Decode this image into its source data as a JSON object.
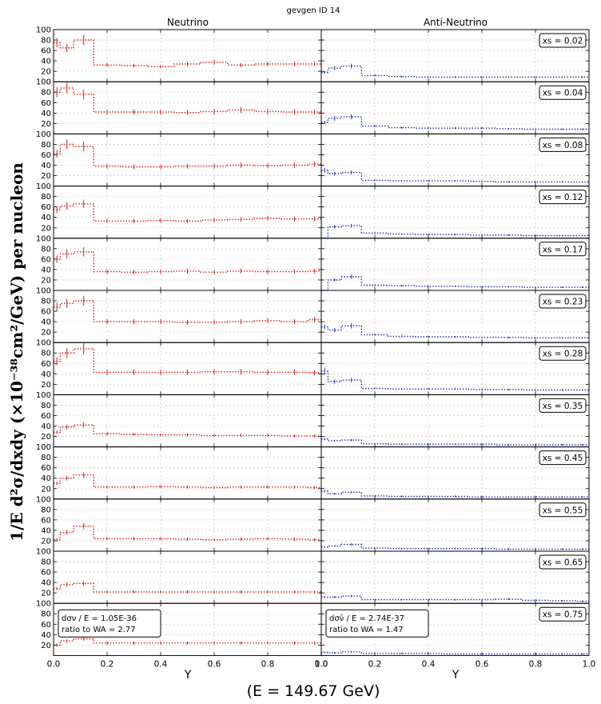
{
  "figure": {
    "title": "gevgen ID 14",
    "col_titles": [
      "Neutrino",
      "Anti-Neutrino"
    ],
    "ylabel_main": "1/E  d²σ/dxdy  (×10⁻³⁸cm²/GeV) per nucleon",
    "xlabel": "Y",
    "energy_label": "(E = 149.67 GeV)",
    "xticks": [
      "0.0",
      "0.2",
      "0.4",
      "0.6",
      "0.8",
      "1.0"
    ],
    "yticks": [
      "20",
      "40",
      "60",
      "80",
      "100"
    ],
    "info": [
      {
        "line1": "dσν / E = 1.05E-36",
        "line2": "ratio to WA = 2.77"
      },
      {
        "line1": "dσν̄ / E = 2.74E-37",
        "line2": "ratio to WA = 1.47"
      }
    ],
    "colors": {
      "neutrino": "#e41a1c",
      "antineutrino": "#1f2fb0",
      "grid": "#c8c8c8"
    }
  },
  "chart_data": {
    "type": "step",
    "title": "gevgen ID 14",
    "xlabel": "Y",
    "xlim": [
      0,
      1
    ],
    "ylim": [
      0,
      100
    ],
    "y_bins_edges": [
      0.0,
      0.025,
      0.075,
      0.15,
      0.25,
      0.35,
      0.45,
      0.55,
      0.65,
      0.75,
      0.85,
      0.95,
      1.0
    ],
    "panels": [
      {
        "xs": "xs = 0.02",
        "neutrino": [
          75,
          65,
          80,
          32,
          31,
          29,
          34,
          37,
          32,
          34,
          34,
          34
        ],
        "antineutrino": [
          18,
          26,
          30,
          12,
          10,
          9,
          9,
          9,
          9,
          9,
          9,
          9
        ]
      },
      {
        "xs": "xs = 0.04",
        "neutrino": [
          80,
          88,
          76,
          42,
          42,
          42,
          41,
          43,
          46,
          43,
          42,
          42
        ],
        "antineutrino": [
          22,
          30,
          33,
          15,
          12,
          11,
          11,
          11,
          10,
          9,
          9,
          9
        ]
      },
      {
        "xs": "xs = 0.08",
        "neutrino": [
          62,
          80,
          76,
          38,
          37,
          37,
          38,
          38,
          40,
          39,
          40,
          42
        ],
        "antineutrino": [
          30,
          24,
          26,
          11,
          10,
          10,
          10,
          9,
          8,
          8,
          8,
          8
        ]
      },
      {
        "xs": "xs = 0.12",
        "neutrino": [
          55,
          62,
          66,
          33,
          33,
          34,
          33,
          35,
          36,
          38,
          37,
          37
        ],
        "antineutrino": [
          0,
          22,
          24,
          10,
          8,
          7,
          7,
          6,
          6,
          5,
          5,
          5
        ]
      },
      {
        "xs": "xs = 0.17",
        "neutrino": [
          60,
          70,
          74,
          36,
          35,
          36,
          37,
          35,
          37,
          36,
          36,
          37
        ],
        "antineutrino": [
          0,
          20,
          26,
          10,
          9,
          8,
          8,
          7,
          7,
          6,
          6,
          6
        ]
      },
      {
        "xs": "xs = 0.23",
        "neutrino": [
          68,
          75,
          80,
          40,
          40,
          40,
          39,
          39,
          40,
          42,
          40,
          44
        ],
        "antineutrino": [
          30,
          24,
          32,
          15,
          12,
          11,
          11,
          10,
          10,
          9,
          9,
          9
        ]
      },
      {
        "xs": "xs = 0.28",
        "neutrino": [
          64,
          80,
          88,
          43,
          43,
          43,
          43,
          44,
          44,
          43,
          43,
          42
        ],
        "antineutrino": [
          45,
          25,
          28,
          12,
          11,
          11,
          11,
          10,
          10,
          9,
          9,
          9
        ]
      },
      {
        "xs": "xs = 0.35",
        "neutrino": [
          28,
          38,
          42,
          25,
          24,
          23,
          23,
          22,
          22,
          22,
          21,
          21
        ],
        "antineutrino": [
          15,
          12,
          13,
          6,
          5,
          5,
          5,
          5,
          4,
          4,
          4,
          4
        ]
      },
      {
        "xs": "xs = 0.45",
        "neutrino": [
          30,
          40,
          46,
          23,
          23,
          24,
          23,
          22,
          23,
          23,
          23,
          22
        ],
        "antineutrino": [
          15,
          10,
          13,
          6,
          5,
          5,
          5,
          4,
          4,
          4,
          4,
          4
        ]
      },
      {
        "xs": "xs = 0.55",
        "neutrino": [
          22,
          36,
          48,
          24,
          24,
          24,
          23,
          22,
          23,
          24,
          23,
          22
        ],
        "antineutrino": [
          8,
          10,
          13,
          6,
          5,
          5,
          5,
          5,
          4,
          4,
          4,
          4
        ]
      },
      {
        "xs": "xs = 0.65",
        "neutrino": [
          28,
          36,
          38,
          22,
          22,
          22,
          22,
          22,
          22,
          22,
          22,
          22
        ],
        "antineutrino": [
          12,
          12,
          14,
          7,
          7,
          7,
          7,
          7,
          8,
          6,
          5,
          4
        ]
      },
      {
        "xs": "xs = 0.75",
        "neutrino": [
          20,
          28,
          32,
          24,
          24,
          24,
          24,
          24,
          24,
          24,
          24,
          24
        ],
        "antineutrino": [
          6,
          5,
          7,
          4,
          4,
          4,
          3,
          3,
          3,
          3,
          3,
          3
        ]
      }
    ]
  }
}
